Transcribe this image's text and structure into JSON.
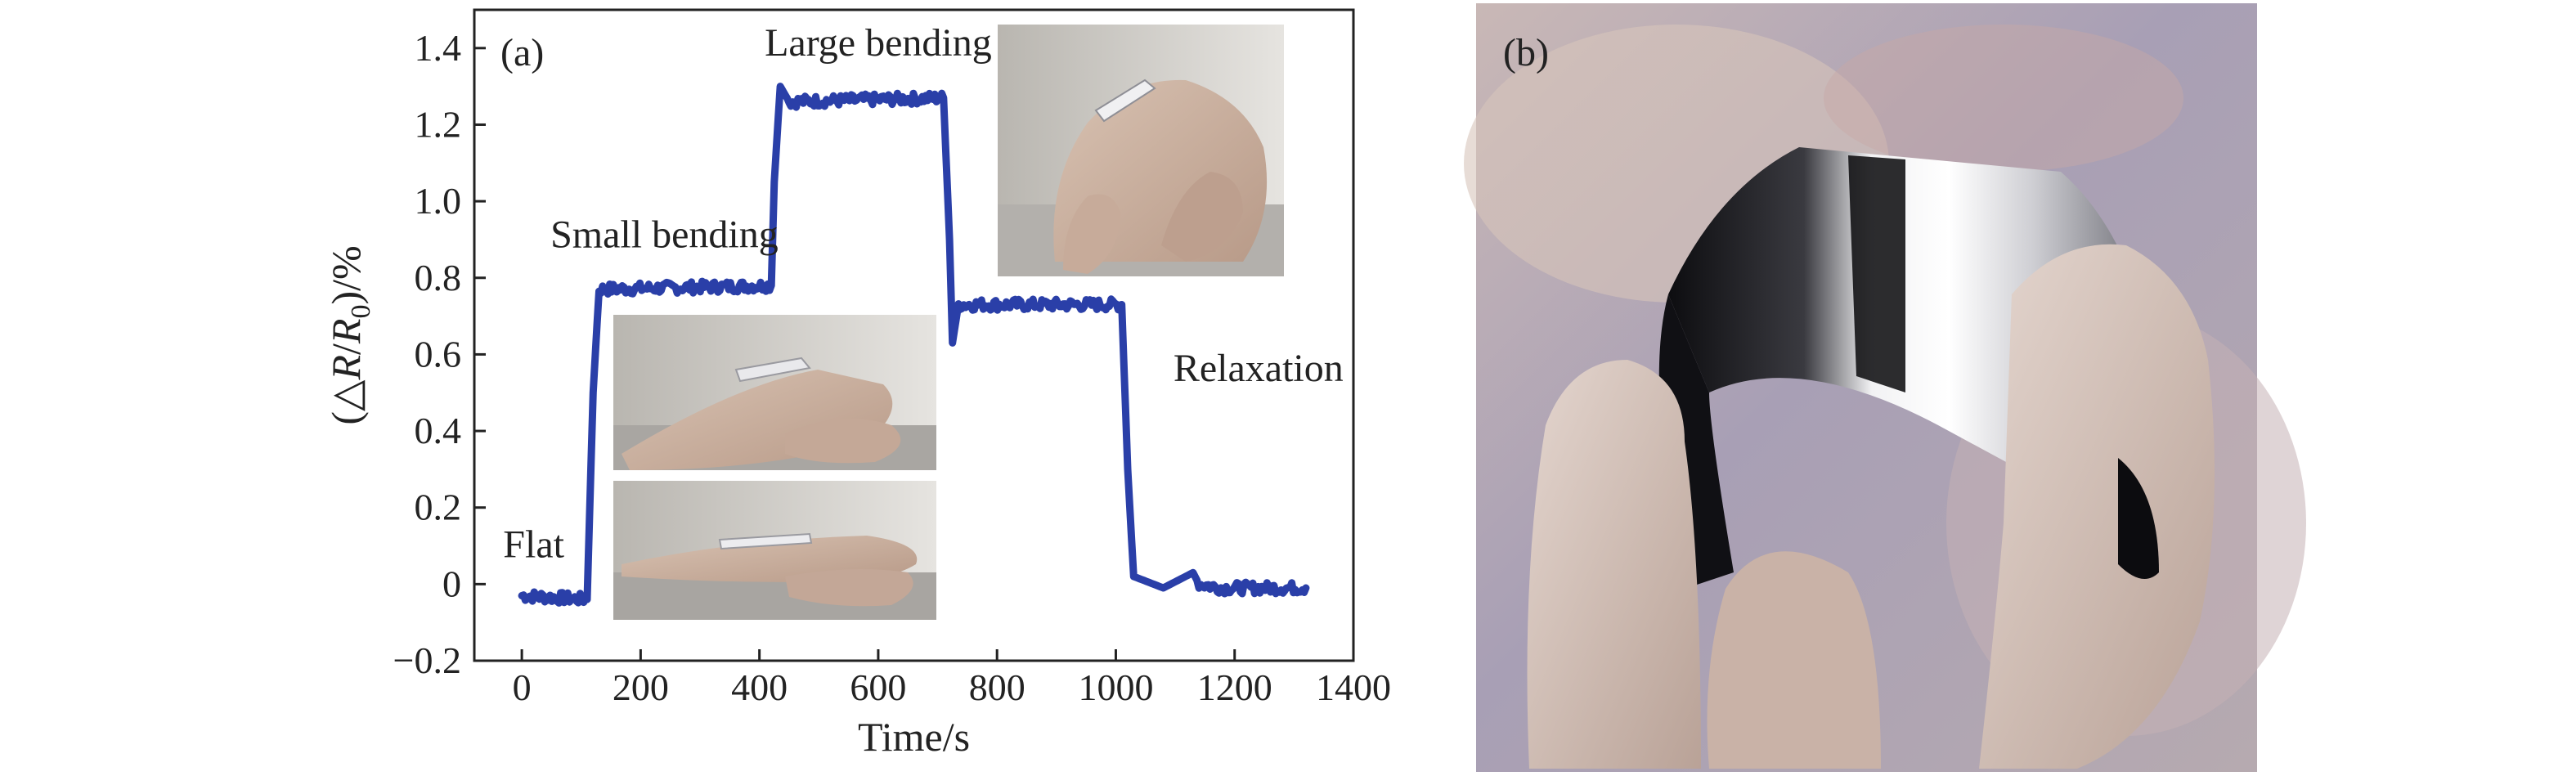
{
  "chart_data": [
    {
      "type": "line",
      "panel_label": "(a)",
      "xlabel": "Time/s",
      "ylabel": {
        "prefix": "(△",
        "var": "R",
        "slash": "/",
        "var2": "R",
        "sub": "0",
        "suffix": ")/%"
      },
      "xlim": [
        -80,
        1400
      ],
      "ylim": [
        -0.2,
        1.5
      ],
      "x_ticks": [
        0,
        200,
        400,
        600,
        800,
        1000,
        1200,
        1400
      ],
      "y_ticks": [
        -0.2,
        0,
        0.2,
        0.4,
        0.6,
        0.8,
        1.0,
        1.2,
        1.4
      ],
      "x_tick_labels": [
        "0",
        "200",
        "400",
        "600",
        "800",
        "1000",
        "1200",
        "1400"
      ],
      "y_tick_labels": [
        "−0.2",
        "0",
        "0.2",
        "0.4",
        "0.6",
        "0.8",
        "1.0",
        "1.2",
        "1.4"
      ],
      "grid": false,
      "series": [
        {
          "color": "#2a3fa8",
          "x": [
            0,
            110,
            120,
            130,
            420,
            425,
            435,
            450,
            710,
            720,
            725,
            735,
            1010,
            1020,
            1030,
            1080,
            1130,
            1140,
            1180,
            1320
          ],
          "y": [
            -0.03,
            -0.04,
            0.5,
            0.77,
            0.78,
            1.05,
            1.3,
            1.26,
            1.27,
            0.9,
            0.63,
            0.73,
            0.73,
            0.3,
            0.02,
            -0.01,
            0.03,
            0.0,
            -0.01,
            -0.01
          ]
        }
      ],
      "annotations": [
        {
          "text": "Flat",
          "x": 20,
          "y": 0.07
        },
        {
          "text": "Small bending",
          "x": 240,
          "y": 0.88
        },
        {
          "text": "Large bending",
          "x": 600,
          "y": 1.38
        },
        {
          "text": "Relaxation",
          "x": 1240,
          "y": 0.53
        }
      ]
    },
    {
      "type": "photo",
      "panel_label": "(b)"
    }
  ],
  "colors": {
    "line": "#2a3fa8",
    "axis": "#222222"
  }
}
